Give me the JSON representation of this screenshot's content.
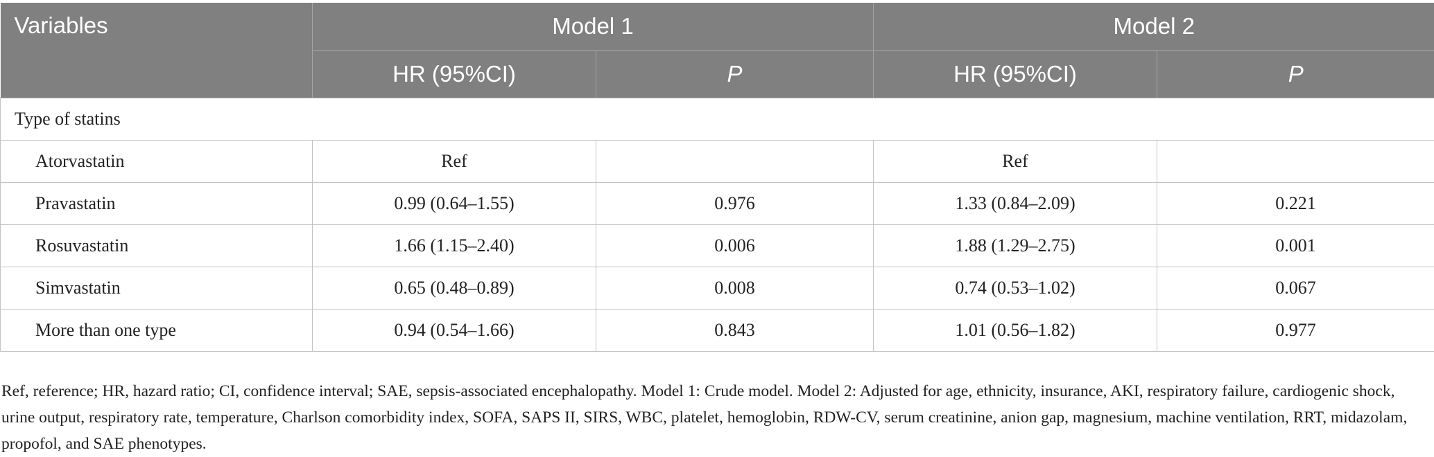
{
  "table": {
    "header": {
      "variables": "Variables",
      "model1": "Model 1",
      "model2": "Model 2",
      "hr_col": "HR (95%CI)",
      "p_col": "P"
    },
    "section_label": "Type of statins",
    "rows": [
      {
        "name": "Atorvastatin",
        "m1_hr": "Ref",
        "m1_p": "",
        "m2_hr": "Ref",
        "m2_p": ""
      },
      {
        "name": "Pravastatin",
        "m1_hr": "0.99 (0.64–1.55)",
        "m1_p": "0.976",
        "m2_hr": "1.33 (0.84–2.09)",
        "m2_p": "0.221"
      },
      {
        "name": "Rosuvastatin",
        "m1_hr": "1.66 (1.15–2.40)",
        "m1_p": "0.006",
        "m2_hr": "1.88 (1.29–2.75)",
        "m2_p": "0.001"
      },
      {
        "name": "Simvastatin",
        "m1_hr": "0.65 (0.48–0.89)",
        "m1_p": "0.008",
        "m2_hr": "0.74 (0.53–1.02)",
        "m2_p": "0.067"
      },
      {
        "name": "More than one type",
        "m1_hr": "0.94 (0.54–1.66)",
        "m1_p": "0.843",
        "m2_hr": "1.01 (0.56–1.82)",
        "m2_p": "0.977"
      }
    ]
  },
  "footnote": "Ref, reference; HR, hazard ratio; CI, confidence interval; SAE, sepsis-associated encephalopathy. Model 1: Crude model. Model 2: Adjusted for age, ethnicity, insurance, AKI, respiratory failure, cardiogenic shock, urine output, respiratory rate, temperature, Charlson comorbidity index, SOFA, SAPS II, SIRS, WBC, platelet, hemoglobin, RDW-CV, serum creatinine, anion gap, magnesium, machine ventilation, RRT, midazolam, propofol, and SAE phenotypes.",
  "colors": {
    "header_background": "#808080",
    "header_text": "#ffffff",
    "grid_line": "#c2c2c2",
    "body_text": "#222222"
  }
}
